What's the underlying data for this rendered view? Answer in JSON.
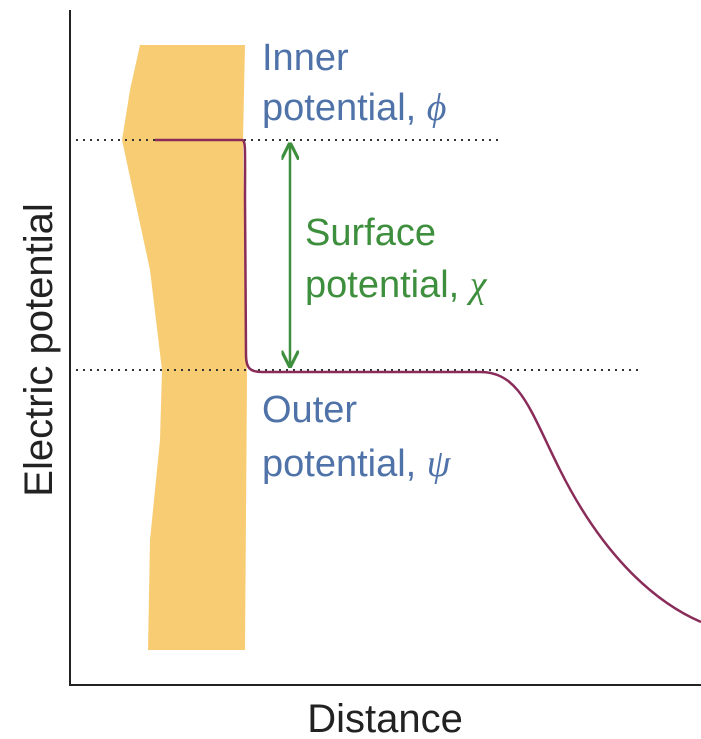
{
  "axes": {
    "y_label": "Electric potential",
    "x_label": "Distance"
  },
  "labels": {
    "inner": {
      "line1": "Inner",
      "line2": "potential,",
      "symbol": "ϕ"
    },
    "surface": {
      "line1": "Surface",
      "line2": "potential,",
      "symbol": "χ"
    },
    "outer": {
      "line1": "Outer",
      "line2": "potential,",
      "symbol": "ψ"
    }
  }
}
